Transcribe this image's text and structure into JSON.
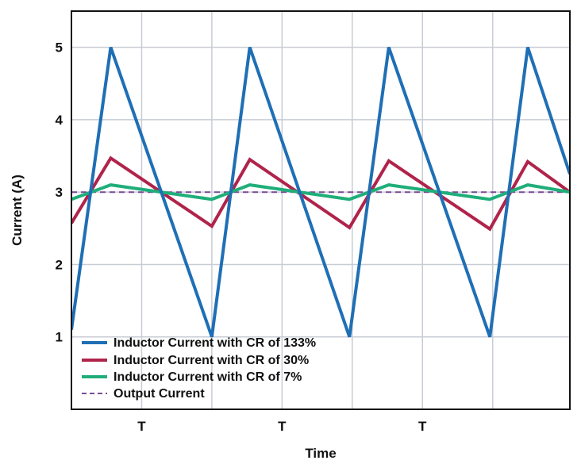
{
  "chart_data": {
    "type": "line",
    "xlabel": "Time",
    "ylabel": "Current (A)",
    "ylim": [
      0,
      5.5
    ],
    "xlim": [
      0,
      3.55
    ],
    "y_ticks": [
      1,
      2,
      3,
      4,
      5
    ],
    "x_ticks": [
      {
        "x": 0.5,
        "label": "T"
      },
      {
        "x": 1.5,
        "label": "T"
      },
      {
        "x": 2.5,
        "label": "T"
      }
    ],
    "x_gridlines": [
      0.5,
      1.0,
      1.5,
      2.0,
      2.5,
      3.0
    ],
    "grid": true,
    "legend_position": "bottom-left",
    "series": [
      {
        "name": "Inductor Current with CR of 133%",
        "color": "#1f6fb5",
        "dash": "solid",
        "points": [
          [
            0,
            1.1
          ],
          [
            0.28,
            5.0
          ],
          [
            1.0,
            1.0
          ],
          [
            1.27,
            5.0
          ],
          [
            1.98,
            1.0
          ],
          [
            2.26,
            5.0
          ],
          [
            2.98,
            1.0
          ],
          [
            3.25,
            5.0
          ],
          [
            3.55,
            3.25
          ]
        ]
      },
      {
        "name": "Inductor Current with CR of 30%",
        "color": "#b0234a",
        "dash": "solid",
        "points": [
          [
            0,
            2.57
          ],
          [
            0.28,
            3.47
          ],
          [
            1.0,
            2.53
          ],
          [
            1.27,
            3.45
          ],
          [
            1.98,
            2.51
          ],
          [
            2.26,
            3.43
          ],
          [
            2.98,
            2.49
          ],
          [
            3.25,
            3.42
          ],
          [
            3.55,
            3.0
          ]
        ]
      },
      {
        "name": "Inductor Current with CR of 7%",
        "color": "#1fae7a",
        "dash": "solid",
        "points": [
          [
            0,
            2.9
          ],
          [
            0.28,
            3.1
          ],
          [
            1.0,
            2.9
          ],
          [
            1.27,
            3.1
          ],
          [
            1.98,
            2.9
          ],
          [
            2.26,
            3.1
          ],
          [
            2.98,
            2.9
          ],
          [
            3.25,
            3.1
          ],
          [
            3.55,
            3.0
          ]
        ]
      },
      {
        "name": "Output Current",
        "color": "#7a4a96",
        "dash": "dashed",
        "points": [
          [
            0,
            3.0
          ],
          [
            3.55,
            3.0
          ]
        ]
      }
    ]
  }
}
